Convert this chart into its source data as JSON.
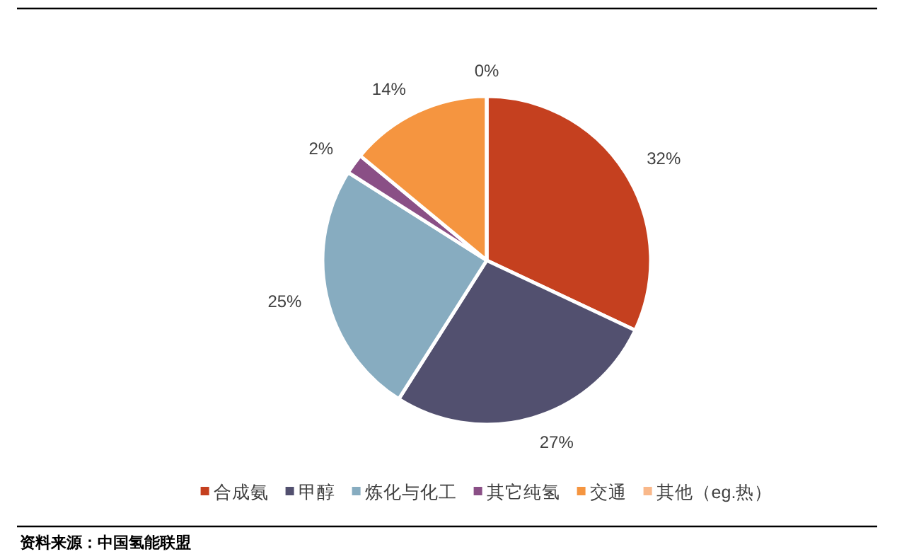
{
  "chart_data": {
    "type": "pie",
    "categories": [
      "合成氨",
      "甲醇",
      "炼化与化工",
      "其它纯氢",
      "交通",
      "其他（eg.热）"
    ],
    "values": [
      32,
      27,
      25,
      2,
      14,
      0
    ],
    "value_labels": [
      "32%",
      "27%",
      "25%",
      "2%",
      "14%",
      "0%"
    ],
    "colors": [
      "#c5401f",
      "#52506f",
      "#87acc0",
      "#8a4f86",
      "#f59540",
      "#f9b88a"
    ],
    "legend": "bottom",
    "annotations": [
      "资料来源：中国氢能联盟"
    ]
  }
}
